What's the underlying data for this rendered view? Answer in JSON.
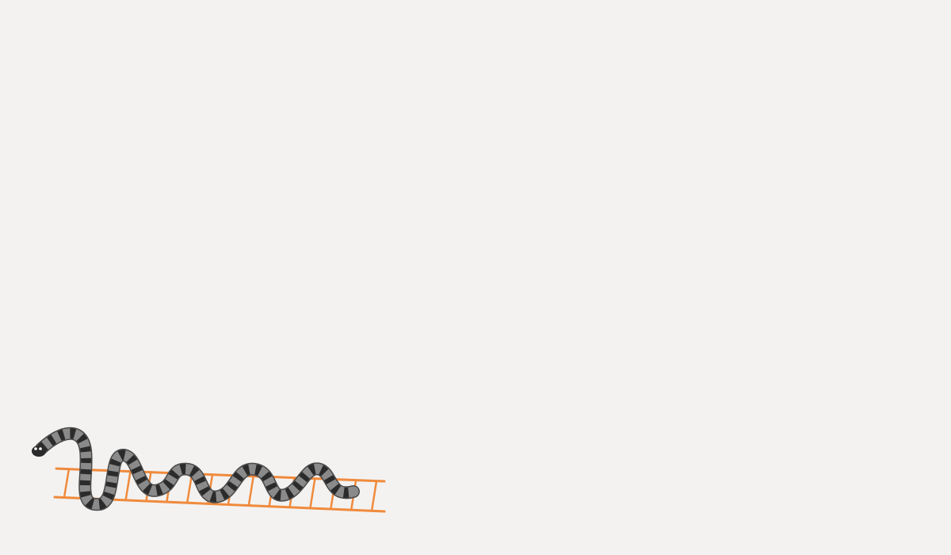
{
  "scene": {
    "background": "#f3f2f1",
    "ladder_color": "#f08a3c",
    "ladder_rung_count": 16,
    "snake_body_color": "#8a8a8a",
    "snake_stripe_color": "#2b2b2b",
    "snake_outline_color": "#4a4a4a",
    "ladder_icon": "ladder-icon",
    "snake_icon": "snake-icon"
  }
}
